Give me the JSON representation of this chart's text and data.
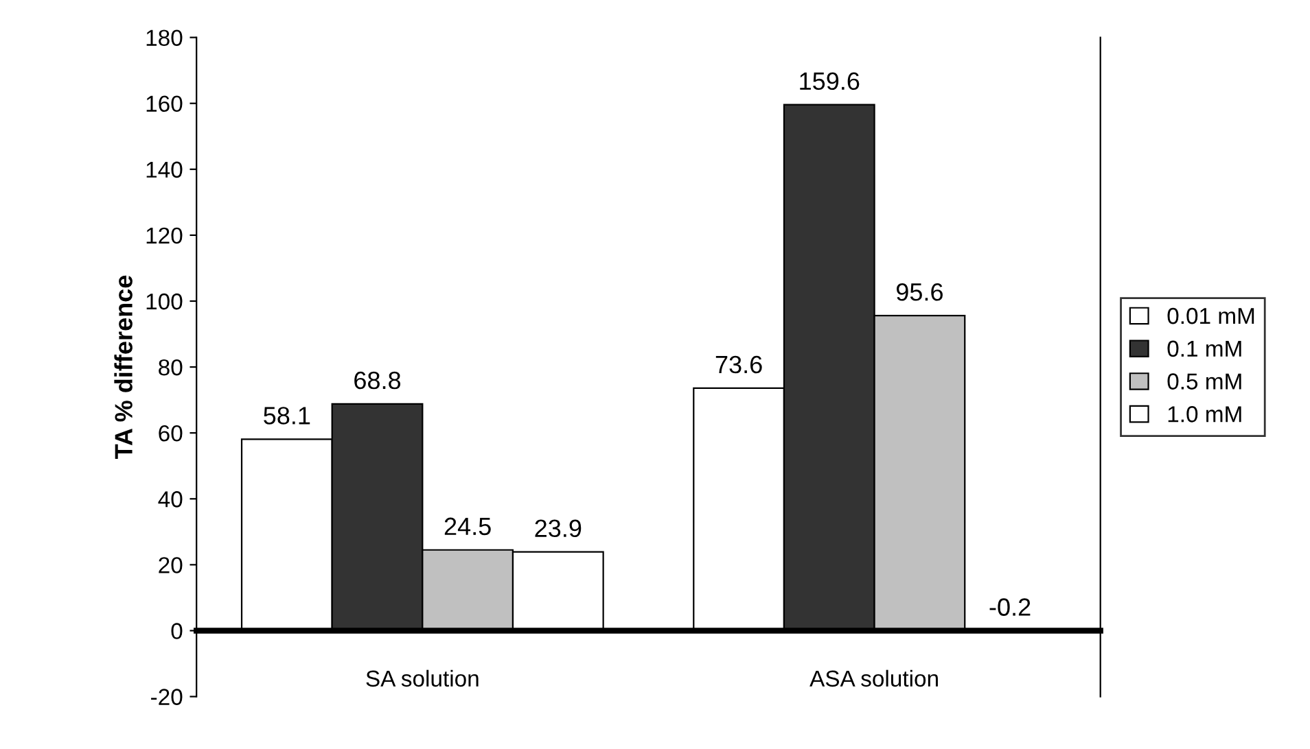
{
  "chart_data": {
    "type": "bar",
    "ylabel": "TA % difference",
    "categories": [
      "SA solution",
      "ASA solution"
    ],
    "series": [
      {
        "name": "0.01 mM",
        "color": "#ffffff",
        "values": [
          58.1,
          73.6
        ]
      },
      {
        "name": "0.1 mM",
        "color": "#333333",
        "values": [
          68.8,
          159.6
        ]
      },
      {
        "name": "0.5 mM",
        "color": "#c0c0c0",
        "values": [
          24.5,
          95.6
        ]
      },
      {
        "name": "1.0 mM",
        "color": "#ffffff",
        "values": [
          23.9,
          -0.2
        ]
      }
    ],
    "ylim": [
      -20,
      180
    ],
    "yticks": [
      -20,
      0,
      20,
      40,
      60,
      80,
      100,
      120,
      140,
      160,
      180
    ],
    "grid": false,
    "legend": "right",
    "data_labels": true
  }
}
